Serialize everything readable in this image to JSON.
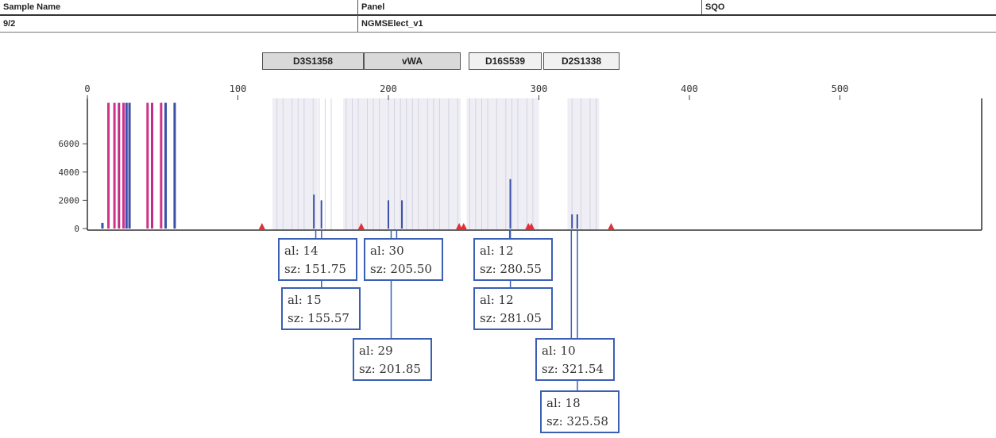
{
  "header": {
    "col1_label": "Sample Name",
    "col2_label": "Panel",
    "col3_label": "SQO",
    "col1_value": "9/2",
    "col2_value": "NGMSElect_v1"
  },
  "markers": [
    {
      "label": "D3S1358"
    },
    {
      "label": "vWA"
    },
    {
      "label": "D16S539"
    },
    {
      "label": "D2S1338"
    }
  ],
  "chart_data": {
    "type": "bar",
    "x_ticks": [
      "0",
      "100",
      "200",
      "300",
      "400",
      "500"
    ],
    "y_ticks": [
      "0",
      "2000",
      "4000",
      "6000"
    ],
    "xlim": [
      0,
      600
    ],
    "ylim": [
      0,
      9000
    ],
    "peaks": [
      {
        "x": 150.5,
        "y": 2400,
        "color": "#3b4ea8"
      },
      {
        "x": 155.5,
        "y": 2000,
        "color": "#3b4ea8"
      },
      {
        "x": 200,
        "y": 2000,
        "color": "#3b4ea8"
      },
      {
        "x": 209,
        "y": 2000,
        "color": "#3b4ea8"
      },
      {
        "x": 281,
        "y": 3500,
        "color": "#3b4ea8"
      },
      {
        "x": 322,
        "y": 1000,
        "color": "#3b4ea8"
      },
      {
        "x": 325.5,
        "y": 1000,
        "color": "#3b4ea8"
      }
    ],
    "primer_peaks": [
      {
        "x": 10,
        "y": 400,
        "color": "#3b4ea8"
      },
      {
        "x": 14,
        "y": 8900,
        "color": "#d0328a"
      },
      {
        "x": 18,
        "y": 8900,
        "color": "#d0328a"
      },
      {
        "x": 21,
        "y": 8900,
        "color": "#c02e86"
      },
      {
        "x": 24,
        "y": 8900,
        "color": "#d0328a"
      },
      {
        "x": 26,
        "y": 8900,
        "color": "#3b4ea8"
      },
      {
        "x": 28,
        "y": 8900,
        "color": "#3b4ea8"
      },
      {
        "x": 40,
        "y": 8900,
        "color": "#d0328a"
      },
      {
        "x": 43,
        "y": 8900,
        "color": "#c02e86"
      },
      {
        "x": 49,
        "y": 8900,
        "color": "#d0328a"
      },
      {
        "x": 52,
        "y": 8900,
        "color": "#3b4ea8"
      },
      {
        "x": 58,
        "y": 8900,
        "color": "#3b4ea8"
      }
    ],
    "size_markers": [
      116,
      182,
      247,
      250,
      293,
      295,
      348
    ],
    "calls": [
      {
        "allele": "al: 14",
        "size": "sz: 151.75"
      },
      {
        "allele": "al: 15",
        "size": "sz: 155.57"
      },
      {
        "allele": "al: 30",
        "size": "sz: 205.50"
      },
      {
        "allele": "al: 29",
        "size": "sz: 201.85"
      },
      {
        "allele": "al: 12",
        "size": "sz: 280.55"
      },
      {
        "allele": "al: 12",
        "size": "sz: 281.05"
      },
      {
        "allele": "al: 10",
        "size": "sz: 321.54"
      },
      {
        "allele": "al: 18",
        "size": "sz: 325.58"
      }
    ]
  }
}
